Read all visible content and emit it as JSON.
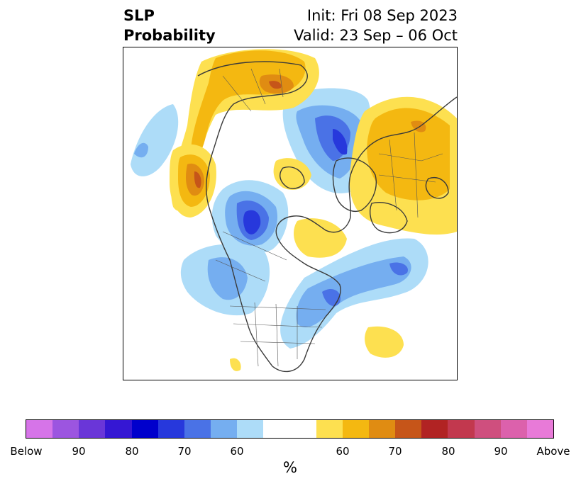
{
  "title": {
    "left_line1": "SLP",
    "left_line2": "Probability",
    "right_line1": "Init: Fri 08 Sep 2023",
    "right_line2": "Valid: 23 Sep – 06 Oct"
  },
  "colorbar": {
    "unit": "%",
    "below_colors": [
      "#d674e8",
      "#9c55e0",
      "#6a36d8",
      "#3517d3",
      "#0000cc",
      "#2738dc",
      "#4a72e6",
      "#75aef0",
      "#addcf8"
    ],
    "neutral_color": "#ffffff",
    "above_colors": [
      "#fde050",
      "#f4b811",
      "#e08c12",
      "#c65519",
      "#b12323",
      "#c2384e",
      "#cf4f7e",
      "#dc61ac",
      "#e87ad8"
    ],
    "tick_labels": [
      "Below",
      "90",
      "80",
      "70",
      "60",
      "60",
      "70",
      "80",
      "90",
      "Above"
    ]
  },
  "map": {
    "projection": "north-polar-stereographic",
    "region": "Northern Hemisphere",
    "features": [
      "coastlines",
      "country-borders",
      "us-state-borders",
      "canada-province-borders"
    ]
  }
}
